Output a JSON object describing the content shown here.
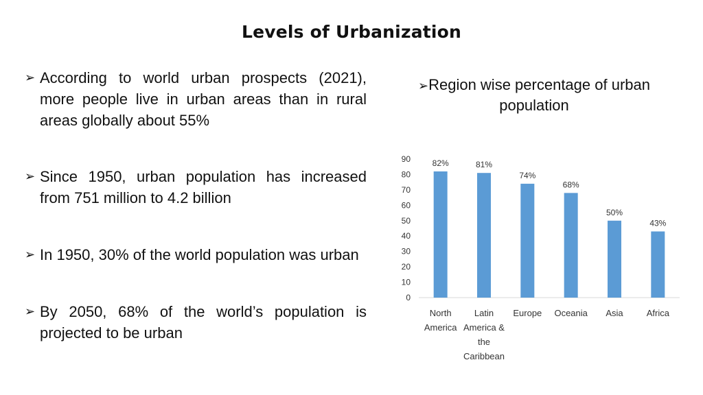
{
  "slide": {
    "title": "Levels of Urbanization",
    "bullets": [
      "According to world urban prospects (2021), more people live in urban areas than in rural areas globally about 55%",
      "Since 1950, urban population has increased from 751 million to 4.2 billion",
      "In 1950, 30% of the world population was urban",
      "By 2050, 68% of the world’s population is projected to be urban"
    ],
    "chart_caption": "Region wise percentage of urban population",
    "bullet_glyph": "➢"
  },
  "chart_data": {
    "type": "bar",
    "categories": [
      [
        "North",
        "America"
      ],
      [
        "Latin",
        "America &",
        "the",
        "Caribbean"
      ],
      [
        "Europe"
      ],
      [
        "Oceania"
      ],
      [
        "Asia"
      ],
      [
        "Africa"
      ]
    ],
    "values": [
      82,
      81,
      74,
      68,
      50,
      43
    ],
    "data_labels": [
      "82%",
      "81%",
      "74%",
      "68%",
      "50%",
      "43%"
    ],
    "yticks": [
      0,
      10,
      20,
      30,
      40,
      50,
      60,
      70,
      80,
      90
    ],
    "ylim": [
      0,
      90
    ],
    "title": "",
    "xlabel": "",
    "ylabel": "",
    "grid": false,
    "bar_color": "#5b9bd5",
    "label_color": "#333333"
  }
}
